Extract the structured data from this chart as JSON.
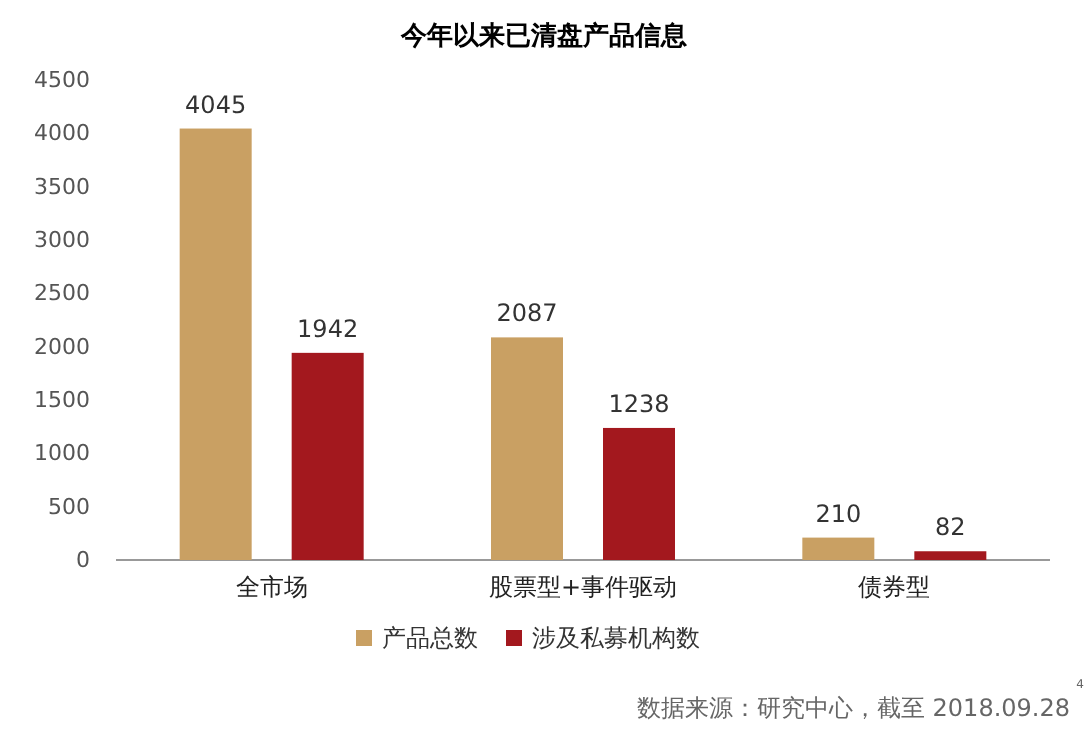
{
  "chart_data": {
    "type": "bar",
    "title": "今年以来已清盘产品信息",
    "categories": [
      "全市场",
      "股票型+事件驱动",
      "债券型"
    ],
    "series": [
      {
        "name": "产品总数",
        "color": "#c9a063",
        "values": [
          4045,
          2087,
          210
        ]
      },
      {
        "name": "涉及私募机构数",
        "color": "#a3181e",
        "values": [
          1942,
          1238,
          82
        ]
      }
    ],
    "ylim": [
      0,
      4500
    ],
    "yticks": [
      0,
      500,
      1000,
      1500,
      2000,
      2500,
      3000,
      3500,
      4000,
      4500
    ],
    "grid": false,
    "legend": "bottom",
    "data_labels": true,
    "annotations": [
      "数据来源：研究中心，截至 2018.09.28",
      "4"
    ]
  }
}
